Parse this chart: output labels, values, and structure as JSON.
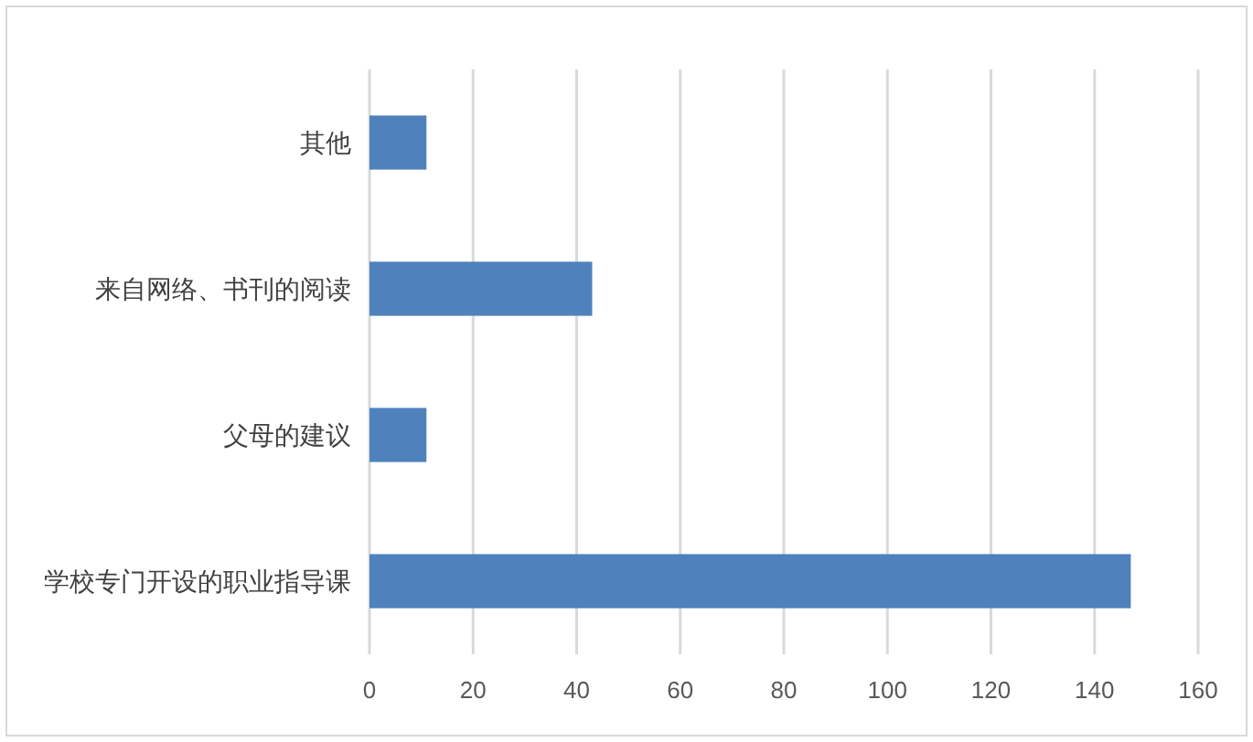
{
  "chart_data": {
    "type": "bar",
    "orientation": "horizontal",
    "categories": [
      "其他",
      "来自网络、书刊的阅读",
      "父母的建议",
      "学校专门开设的职业指导课"
    ],
    "values": [
      11,
      43,
      11,
      147
    ],
    "color": "#4f81bd",
    "xlim": [
      0,
      160
    ],
    "xticks": [
      0,
      20,
      40,
      60,
      80,
      100,
      120,
      140,
      160
    ],
    "grid": "x"
  }
}
